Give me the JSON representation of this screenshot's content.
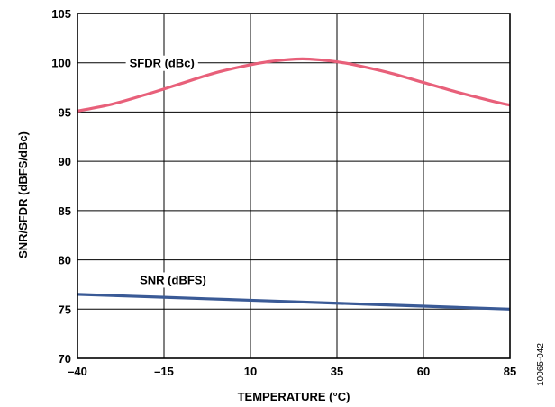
{
  "figure_id": "10065-042",
  "chart_data": {
    "type": "line",
    "xlabel": "TEMPERATURE (°C)",
    "ylabel": "SNR/SFDR (dBFS/dBc)",
    "xlim": [
      -40,
      85
    ],
    "ylim": [
      70,
      105
    ],
    "x_ticks": [
      -40,
      -15,
      10,
      35,
      60,
      85
    ],
    "x_tick_labels": [
      "–40",
      "–15",
      "10",
      "35",
      "60",
      "85"
    ],
    "y_ticks": [
      70,
      75,
      80,
      85,
      90,
      95,
      100,
      105
    ],
    "y_tick_labels": [
      "70",
      "75",
      "80",
      "85",
      "90",
      "95",
      "100",
      "105"
    ],
    "grid": true,
    "legend": "none",
    "series": [
      {
        "name": "SFDR (dBc)",
        "color": "#e8607a",
        "label_position": "near curve, upper-left",
        "x": [
          -40,
          -30,
          -20,
          -10,
          0,
          10,
          15,
          20,
          25,
          30,
          35,
          40,
          50,
          60,
          70,
          80,
          85
        ],
        "y": [
          95.1,
          95.8,
          96.8,
          97.9,
          99.0,
          99.8,
          100.1,
          100.3,
          100.4,
          100.3,
          100.1,
          99.8,
          99.0,
          98.0,
          97.0,
          96.1,
          95.7
        ]
      },
      {
        "name": "SNR (dBFS)",
        "color": "#3a5a96",
        "label_position": "above curve, left",
        "x": [
          -40,
          -15,
          10,
          35,
          60,
          85
        ],
        "y": [
          76.5,
          76.2,
          75.9,
          75.6,
          75.3,
          75.0
        ]
      }
    ]
  }
}
